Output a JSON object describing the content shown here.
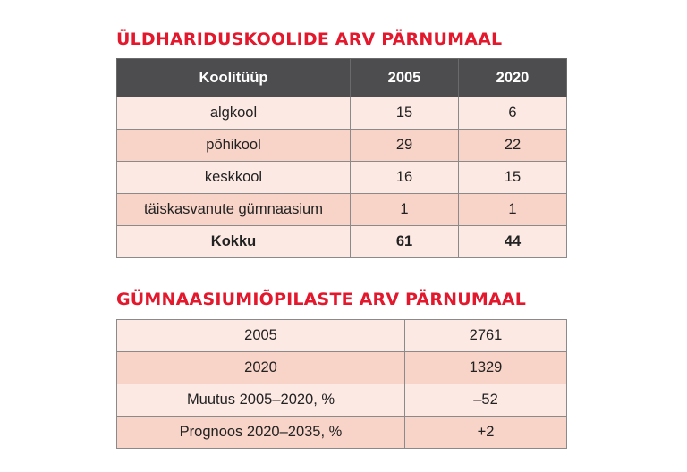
{
  "chart_data": [
    {
      "type": "table",
      "title": "ÜLDHARIDUSKOOLIDE ARV PÄRNUMAAL",
      "columns": [
        "Koolitüüp",
        "2005",
        "2020"
      ],
      "rows": [
        [
          "algkool",
          "15",
          "6"
        ],
        [
          "põhikool",
          "29",
          "22"
        ],
        [
          "keskkool",
          "16",
          "15"
        ],
        [
          "täiskasvanute gümnaasium",
          "1",
          "1"
        ],
        [
          "Kokku",
          "61",
          "44"
        ]
      ]
    },
    {
      "type": "table",
      "title": "GÜMNAASIUMIÕPILASTE ARV PÄRNUMAAL",
      "columns": [],
      "rows": [
        [
          "2005",
          "2761"
        ],
        [
          "2020",
          "1329"
        ],
        [
          "Muutus 2005–2020, %",
          "–52"
        ],
        [
          "Prognoos 2020–2035, %",
          "+2"
        ]
      ]
    }
  ],
  "colors": {
    "title": "#e3182d",
    "header_bg": "#4d4d4f",
    "row_light": "#fde9e3",
    "row_dark": "#f8d3c7",
    "border": "#8a8a8a"
  }
}
